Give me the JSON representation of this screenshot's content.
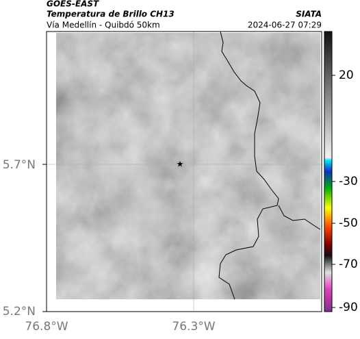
{
  "header": {
    "source": "GOES-EAST",
    "title": "Temperatura de Brillo CH13",
    "org": "SIATA",
    "subtitle": "Vía Medellín - Quibdó 50km",
    "datetime": "2024-06-27 07:29"
  },
  "map": {
    "lat_labels": [
      "5.7°N",
      "5.2°N"
    ],
    "lon_labels": [
      "76.8°W",
      "76.3°W"
    ]
  },
  "colorbar": {
    "ticks": [
      20,
      -30,
      -50,
      -70,
      -90
    ]
  }
}
